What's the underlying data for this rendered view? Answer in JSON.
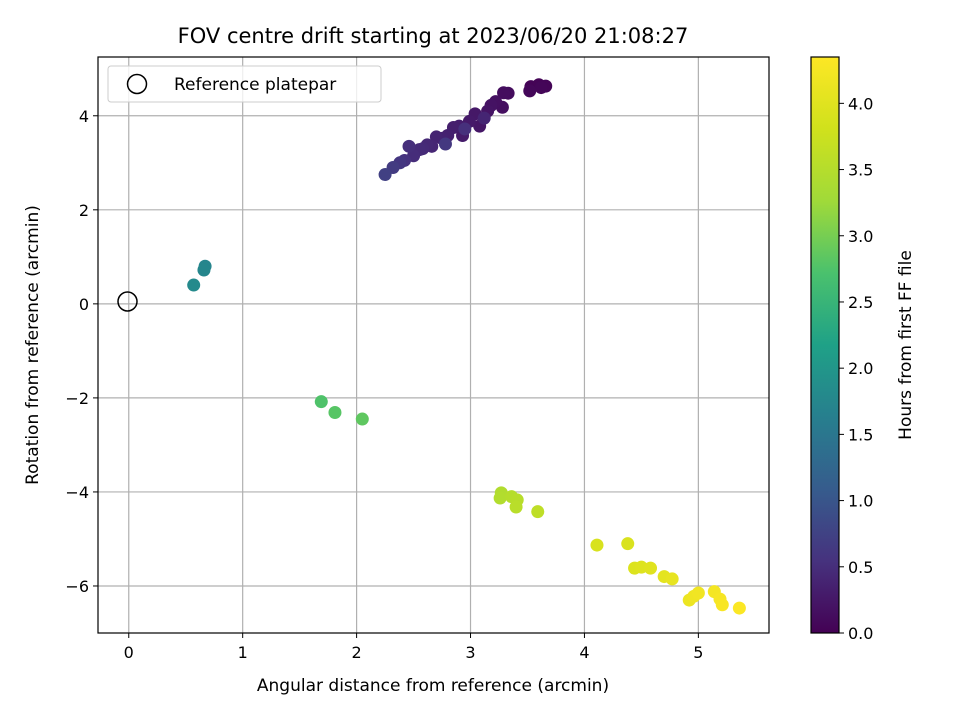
{
  "chart_data": {
    "type": "scatter",
    "title": "FOV centre drift starting at 2023/06/20 21:08:27",
    "xlabel": "Angular distance from reference (arcmin)",
    "ylabel": "Rotation from reference (arcmin)",
    "xlim": [
      -0.27,
      5.62
    ],
    "ylim": [
      -7.0,
      5.25
    ],
    "xticks": [
      0,
      1,
      2,
      3,
      4,
      5
    ],
    "yticks": [
      -6,
      -4,
      -2,
      0,
      2,
      4
    ],
    "grid": true,
    "legend": {
      "placement": "top-left",
      "entries": [
        "Reference platepar"
      ]
    },
    "reference_point": {
      "name": "Reference platepar",
      "x": 0,
      "y": 0
    },
    "colorbar": {
      "label": "Hours from first FF file",
      "colormap": "viridis",
      "range": [
        0.0,
        4.35
      ],
      "ticks": [
        0.0,
        0.5,
        1.0,
        1.5,
        2.0,
        2.5,
        3.0,
        3.5,
        4.0
      ],
      "tick_labels": [
        "0.0",
        "0.5",
        "1.0",
        "1.5",
        "2.0",
        "2.5",
        "3.0",
        "3.5",
        "4.0"
      ]
    },
    "points": [
      {
        "x": 3.53,
        "y": 4.62,
        "c": 0.02
      },
      {
        "x": 3.6,
        "y": 4.66,
        "c": 0.03
      },
      {
        "x": 3.66,
        "y": 4.63,
        "c": 0.04
      },
      {
        "x": 3.62,
        "y": 4.6,
        "c": 0.05
      },
      {
        "x": 3.52,
        "y": 4.53,
        "c": 0.07
      },
      {
        "x": 3.33,
        "y": 4.48,
        "c": 0.12
      },
      {
        "x": 3.29,
        "y": 4.49,
        "c": 0.13
      },
      {
        "x": 3.28,
        "y": 4.18,
        "c": 0.15
      },
      {
        "x": 3.22,
        "y": 4.3,
        "c": 0.17
      },
      {
        "x": 3.18,
        "y": 4.22,
        "c": 0.19
      },
      {
        "x": 3.15,
        "y": 4.1,
        "c": 0.21
      },
      {
        "x": 3.08,
        "y": 3.78,
        "c": 0.23
      },
      {
        "x": 3.04,
        "y": 4.04,
        "c": 0.25
      },
      {
        "x": 2.99,
        "y": 3.88,
        "c": 0.27
      },
      {
        "x": 2.93,
        "y": 3.58,
        "c": 0.29
      },
      {
        "x": 2.9,
        "y": 3.78,
        "c": 0.31
      },
      {
        "x": 2.85,
        "y": 3.75,
        "c": 0.33
      },
      {
        "x": 2.8,
        "y": 3.58,
        "c": 0.35
      },
      {
        "x": 2.75,
        "y": 3.52,
        "c": 0.37
      },
      {
        "x": 2.7,
        "y": 3.55,
        "c": 0.39
      },
      {
        "x": 2.66,
        "y": 3.35,
        "c": 0.41
      },
      {
        "x": 2.62,
        "y": 3.38,
        "c": 0.43
      },
      {
        "x": 2.58,
        "y": 3.3,
        "c": 0.45
      },
      {
        "x": 2.55,
        "y": 3.28,
        "c": 0.47
      },
      {
        "x": 2.5,
        "y": 3.15,
        "c": 0.49
      },
      {
        "x": 2.46,
        "y": 3.35,
        "c": 0.51
      },
      {
        "x": 2.42,
        "y": 3.05,
        "c": 0.55
      },
      {
        "x": 2.38,
        "y": 3.0,
        "c": 0.6
      },
      {
        "x": 2.32,
        "y": 2.9,
        "c": 0.66
      },
      {
        "x": 2.25,
        "y": 2.75,
        "c": 0.72
      },
      {
        "x": 3.12,
        "y": 3.95,
        "c": 0.4
      },
      {
        "x": 2.95,
        "y": 3.72,
        "c": 0.52
      },
      {
        "x": 2.78,
        "y": 3.4,
        "c": 0.62
      },
      {
        "x": 0.67,
        "y": 0.8,
        "c": 1.73
      },
      {
        "x": 0.66,
        "y": 0.72,
        "c": 1.75
      },
      {
        "x": 0.57,
        "y": 0.4,
        "c": 1.8
      },
      {
        "x": 1.69,
        "y": -2.08,
        "c": 2.75
      },
      {
        "x": 1.81,
        "y": -2.31,
        "c": 2.8
      },
      {
        "x": 2.05,
        "y": -2.45,
        "c": 2.85
      },
      {
        "x": 3.27,
        "y": -4.02,
        "c": 3.45
      },
      {
        "x": 3.26,
        "y": -4.13,
        "c": 3.47
      },
      {
        "x": 3.36,
        "y": -4.1,
        "c": 3.5
      },
      {
        "x": 3.41,
        "y": -4.17,
        "c": 3.52
      },
      {
        "x": 3.4,
        "y": -4.32,
        "c": 3.55
      },
      {
        "x": 3.59,
        "y": -4.42,
        "c": 3.6
      },
      {
        "x": 4.11,
        "y": -5.13,
        "c": 3.9
      },
      {
        "x": 4.38,
        "y": -5.1,
        "c": 3.92
      },
      {
        "x": 4.44,
        "y": -5.62,
        "c": 3.95
      },
      {
        "x": 4.5,
        "y": -5.6,
        "c": 3.98
      },
      {
        "x": 4.58,
        "y": -5.62,
        "c": 4.0
      },
      {
        "x": 4.7,
        "y": -5.8,
        "c": 4.05
      },
      {
        "x": 4.77,
        "y": -5.85,
        "c": 4.08
      },
      {
        "x": 4.92,
        "y": -6.3,
        "c": 4.15
      },
      {
        "x": 4.96,
        "y": -6.22,
        "c": 4.18
      },
      {
        "x": 5.0,
        "y": -6.15,
        "c": 4.2
      },
      {
        "x": 5.14,
        "y": -6.12,
        "c": 4.24
      },
      {
        "x": 5.19,
        "y": -6.28,
        "c": 4.27
      },
      {
        "x": 5.21,
        "y": -6.4,
        "c": 4.29
      },
      {
        "x": 5.36,
        "y": -6.47,
        "c": 4.33
      }
    ]
  }
}
